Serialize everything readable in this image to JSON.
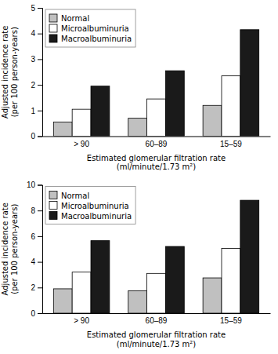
{
  "chart_data": [
    {
      "type": "bar",
      "categories": [
        "> 90",
        "60–89",
        "15–59"
      ],
      "series": [
        {
          "name": "Normal",
          "color": "#c0c0c0",
          "values": [
            0.55,
            0.7,
            1.2
          ]
        },
        {
          "name": "Microalbuminuria",
          "color": "#ffffff",
          "values": [
            1.05,
            1.45,
            2.35
          ]
        },
        {
          "name": "Macroalbuminuria",
          "color": "#1a1a1a",
          "values": [
            1.95,
            2.55,
            4.15
          ]
        }
      ],
      "xlabel": "Estimated glomerular filtration rate\n(ml/minute/1.73 m²)",
      "ylabel": "Adjusted incidence rate\n(per 100 person-years)",
      "ylim": [
        0,
        5
      ],
      "yticks": [
        0,
        1,
        2,
        3,
        4,
        5
      ],
      "grid": false,
      "legend": "upper left"
    },
    {
      "type": "bar",
      "categories": [
        "> 90",
        "60–89",
        "15–59"
      ],
      "series": [
        {
          "name": "Normal",
          "color": "#c0c0c0",
          "values": [
            1.9,
            1.75,
            2.75
          ]
        },
        {
          "name": "Microalbuminuria",
          "color": "#ffffff",
          "values": [
            3.2,
            3.1,
            5.05
          ]
        },
        {
          "name": "Macroalbuminuria",
          "color": "#1a1a1a",
          "values": [
            5.65,
            5.2,
            8.8
          ]
        }
      ],
      "xlabel": "Estimated glomerular filtration rate\n(ml/minute/1.73 m²)",
      "ylabel": "Adjusted incidence rate\n(per 100 person-years)",
      "ylim": [
        0,
        10
      ],
      "yticks": [
        0,
        2,
        4,
        6,
        8,
        10
      ],
      "grid": false,
      "legend": "upper left"
    }
  ]
}
